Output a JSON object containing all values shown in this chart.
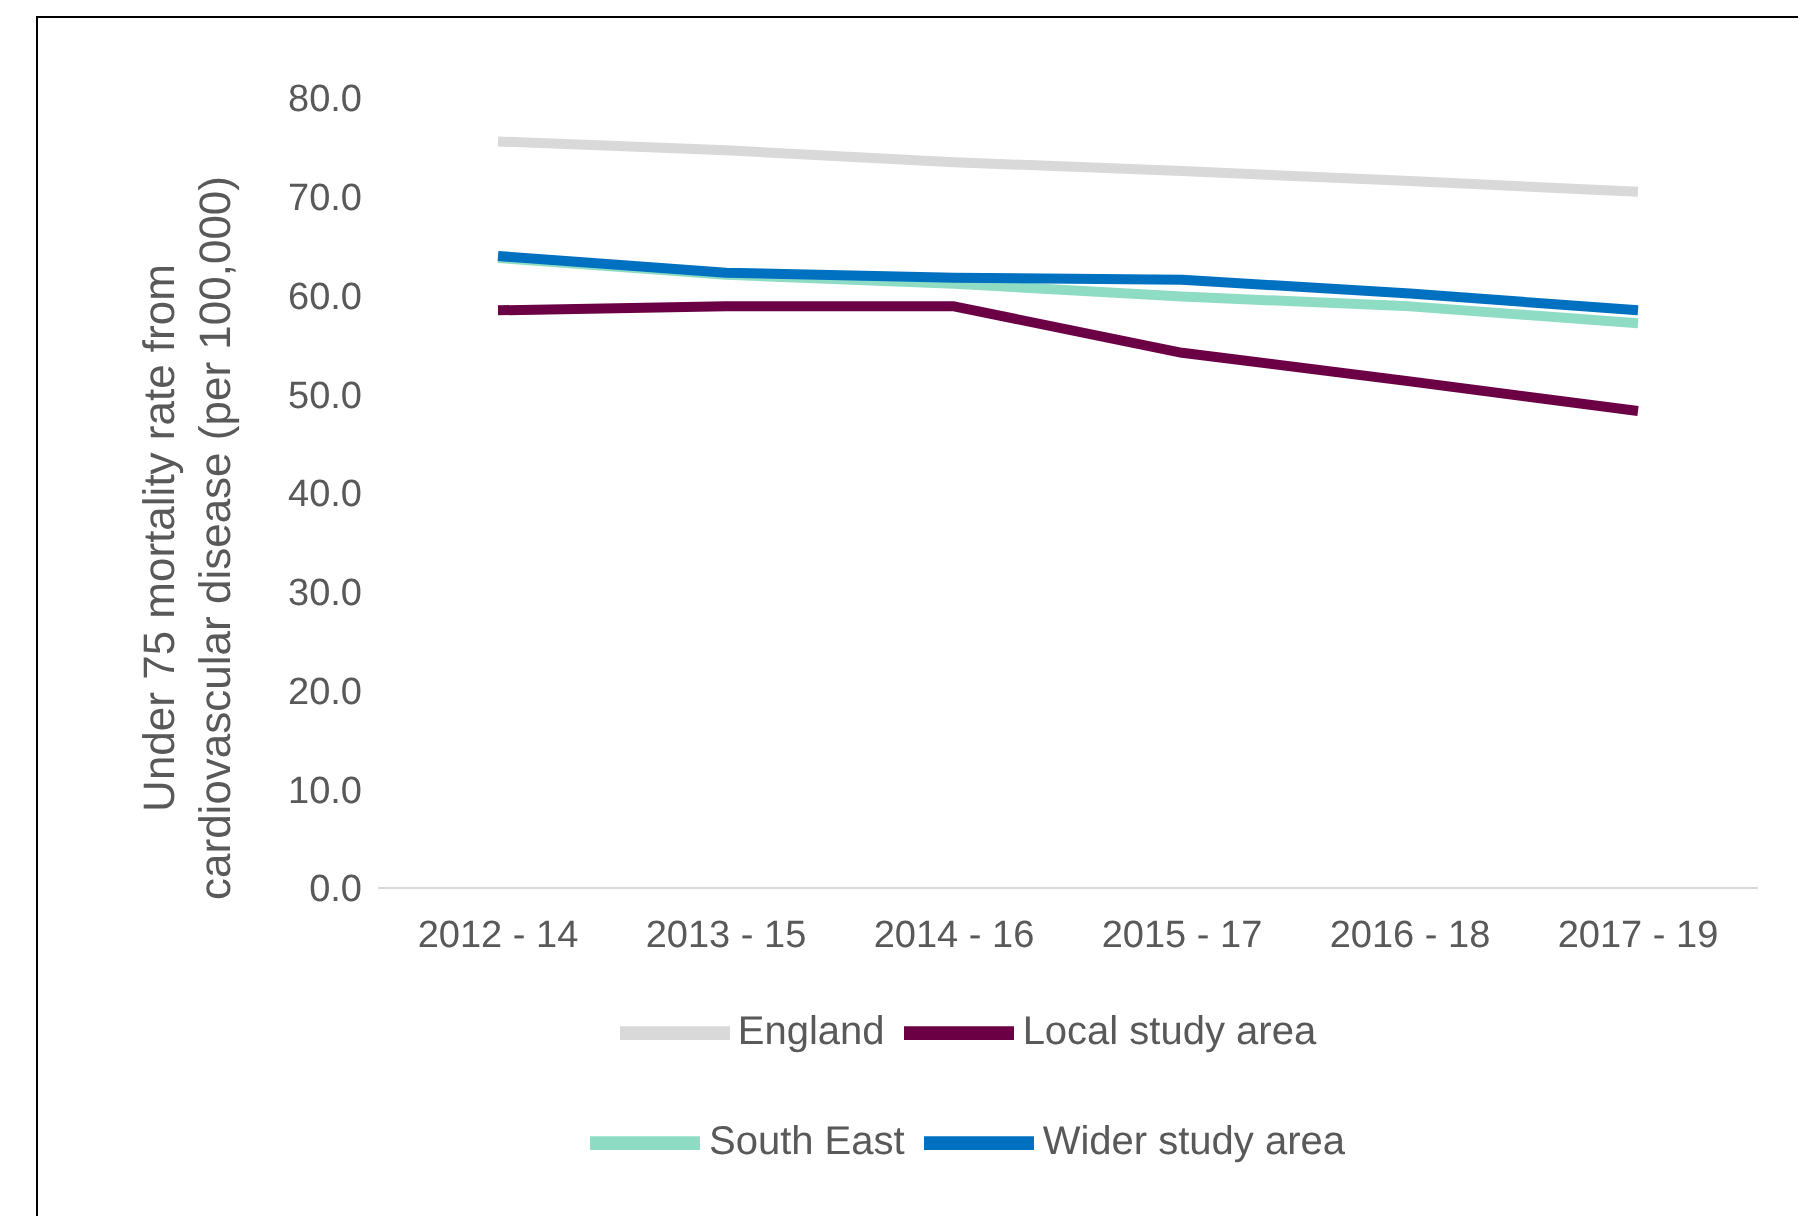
{
  "chart_data": {
    "type": "line",
    "ylabel": "Under 75 mortality rate from cardiovascular disease (per 100,000)",
    "categories": [
      "2012 - 14",
      "2013 - 15",
      "2014 - 16",
      "2015 - 17",
      "2016 - 18",
      "2017 - 19"
    ],
    "series": [
      {
        "name": "Local study area",
        "color": "#6b0044",
        "values": [
          58.5,
          58.9,
          58.9,
          54.2,
          51.3,
          48.3
        ]
      },
      {
        "name": "Wider study area",
        "color": "#0070c0",
        "values": [
          64.0,
          62.3,
          61.8,
          61.6,
          60.2,
          58.5
        ]
      },
      {
        "name": "South East",
        "color": "#8fdcc4",
        "values": [
          63.8,
          62.1,
          61.2,
          59.9,
          58.9,
          57.2
        ]
      },
      {
        "name": "England",
        "color": "#d9d9d9",
        "values": [
          75.6,
          74.7,
          73.5,
          72.6,
          71.6,
          70.5
        ]
      }
    ],
    "ylim": [
      0,
      80
    ],
    "yticks": [
      {
        "value": 0,
        "label": "0.0"
      },
      {
        "value": 10,
        "label": "10.0"
      },
      {
        "value": 20,
        "label": "20.0"
      },
      {
        "value": 30,
        "label": "30.0"
      },
      {
        "value": 40,
        "label": "40.0"
      },
      {
        "value": 50,
        "label": "50.0"
      },
      {
        "value": 60,
        "label": "60.0"
      },
      {
        "value": 70,
        "label": "70.0"
      },
      {
        "value": 80,
        "label": "80.0"
      }
    ],
    "grid": false,
    "legend": "bottom",
    "marker": "none",
    "line_style": "solid"
  }
}
